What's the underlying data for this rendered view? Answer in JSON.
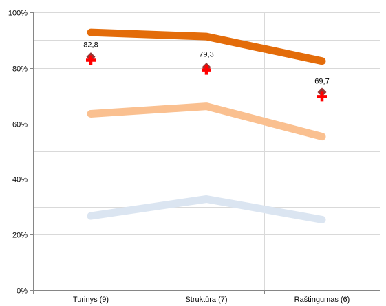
{
  "chart_data": {
    "type": "line",
    "categories": [
      "Turinys (9)",
      "Struktūra (7)",
      "Raštingumas (6)"
    ],
    "ylim": [
      0,
      100
    ],
    "yticks": [
      0,
      20,
      40,
      60,
      80,
      100
    ],
    "ytick_labels": [
      "0%",
      "20%",
      "40%",
      "60%",
      "80%",
      "100%"
    ],
    "grid": true,
    "series": [
      {
        "values": [
          92.8,
          91.3,
          82.5
        ],
        "color": "#e36c0a",
        "style": "thick-line"
      },
      {
        "values": [
          63.5,
          66.2,
          55.3
        ],
        "color": "#fac090",
        "style": "thick-line"
      },
      {
        "values": [
          26.7,
          32.8,
          25.4
        ],
        "color": "#dbe5f1",
        "style": "thick-line"
      },
      {
        "values": [
          84.0,
          80.3,
          71.3
        ],
        "color": "#953735",
        "style": "diamond-marker"
      },
      {
        "values": [
          82.8,
          79.3,
          69.7
        ],
        "color": "#ff0000",
        "style": "cross-marker",
        "data_labels": [
          "82,8",
          "79,3",
          "69,7"
        ]
      }
    ]
  }
}
